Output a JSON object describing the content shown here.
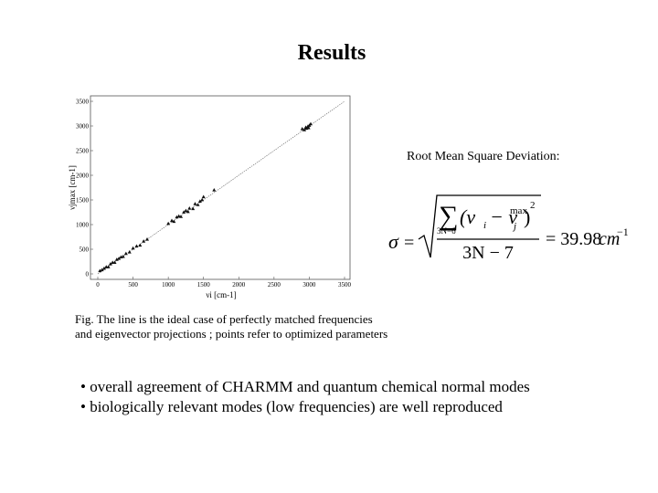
{
  "slide_title": "Results",
  "chart_data": {
    "type": "scatter",
    "xlabel": "νi [cm-1]",
    "ylabel": "νjmax [cm-1]",
    "xlim": [
      0,
      3500
    ],
    "ylim": [
      0,
      3500
    ],
    "xticks": [
      0,
      500,
      1000,
      1500,
      2000,
      2500,
      3000,
      3500
    ],
    "yticks": [
      0,
      500,
      1000,
      1500,
      2000,
      2500,
      3000,
      3500
    ],
    "color": "#111111",
    "x": [
      30,
      60,
      90,
      120,
      150,
      180,
      210,
      240,
      270,
      300,
      330,
      360,
      400,
      450,
      500,
      550,
      600,
      650,
      700,
      1000,
      1050,
      1080,
      1120,
      1150,
      1180,
      1220,
      1250,
      1280,
      1300,
      1350,
      1380,
      1420,
      1450,
      1480,
      1500,
      1650,
      2900,
      2930,
      2950,
      2960,
      2980,
      2990,
      3000,
      3020
    ],
    "y": [
      60,
      80,
      110,
      140,
      140,
      200,
      230,
      230,
      290,
      310,
      340,
      350,
      410,
      440,
      520,
      560,
      580,
      660,
      700,
      1020,
      1080,
      1060,
      1150,
      1170,
      1160,
      1250,
      1280,
      1260,
      1330,
      1320,
      1420,
      1400,
      1470,
      1500,
      1560,
      1700,
      2940,
      2920,
      2970,
      2950,
      2990,
      2960,
      3010,
      3040
    ]
  },
  "rmsd_label": "Root Mean Square Deviation:",
  "formula": {
    "sigma": "σ",
    "equals": "=",
    "sum": "∑",
    "sum_index": "3N−6",
    "open": "(ν",
    "sub_i": "i",
    "minus": "− ν",
    "sub_j": "j",
    "sup_max": "max",
    "close": ")",
    "power": "2",
    "denominator": "3N − 7",
    "result": "= 39.98",
    "unit": "cm",
    "unit_power": "−1"
  },
  "caption": [
    "Fig. The line is the ideal case of perfectly matched frequencies",
    "and eigenvector projections ; points refer to optimized parameters"
  ],
  "bullets": [
    "• overall agreement of CHARMM and quantum chemical normal modes",
    "• biologically relevant modes (low frequencies) are well reproduced"
  ]
}
